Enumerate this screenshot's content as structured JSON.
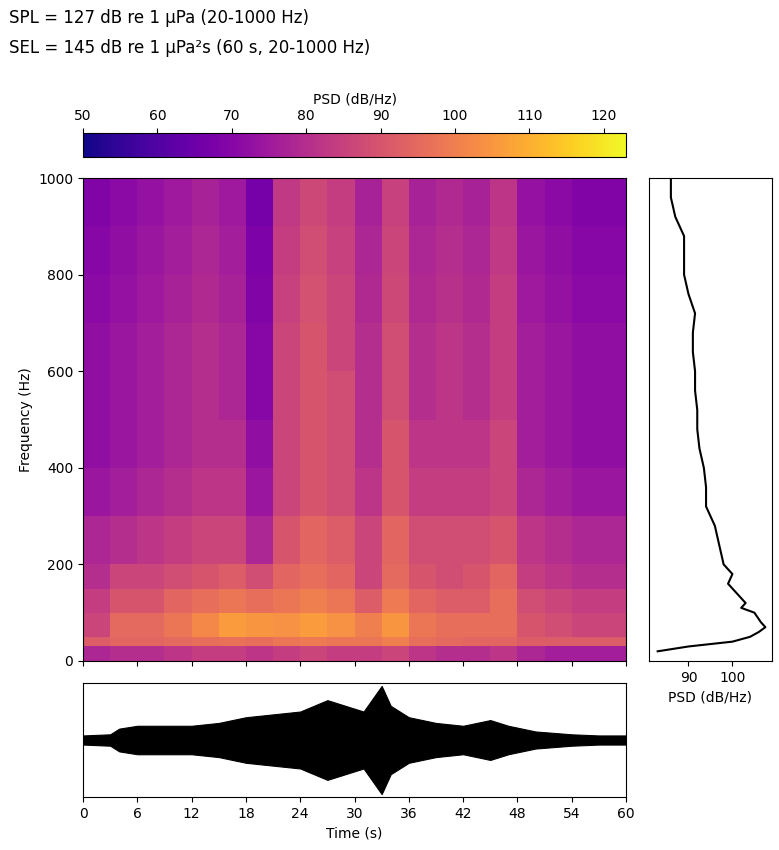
{
  "chart_data": [
    {
      "type": "heatmap",
      "title": "SPL = 127 dB re 1 µPa (20-1000 Hz)",
      "subtitle": "SEL = 145 dB re 1 µPa²s (60 s, 20-1000 Hz)",
      "y_label": "Frequency (Hz)",
      "x_edges": [
        0,
        3,
        6,
        9,
        12,
        15,
        18,
        21,
        24,
        27,
        30,
        33,
        36,
        39,
        42,
        45,
        48,
        51,
        54,
        57,
        60
      ],
      "y_edges": [
        0,
        30,
        50,
        100,
        150,
        200,
        300,
        400,
        500,
        600,
        700,
        800,
        900,
        1000
      ],
      "cells": [
        [
          78,
          80,
          80,
          82,
          84,
          84,
          82,
          84,
          86,
          84,
          84,
          86,
          82,
          80,
          80,
          82,
          78,
          76,
          76,
          76
        ],
        [
          92,
          94,
          94,
          95,
          96,
          97,
          96,
          98,
          99,
          98,
          98,
          100,
          96,
          95,
          94,
          94,
          92,
          92,
          92,
          92
        ],
        [
          86,
          95,
          95,
          98,
          102,
          106,
          105,
          104,
          106,
          104,
          100,
          105,
          98,
          96,
          96,
          96,
          90,
          88,
          86,
          86
        ],
        [
          84,
          90,
          90,
          94,
          96,
          98,
          96,
          98,
          100,
          98,
          92,
          99,
          94,
          92,
          92,
          96,
          88,
          86,
          84,
          84
        ],
        [
          80,
          86,
          86,
          88,
          90,
          92,
          88,
          94,
          96,
          94,
          86,
          95,
          90,
          88,
          90,
          94,
          84,
          82,
          80,
          80
        ],
        [
          78,
          80,
          82,
          84,
          86,
          86,
          78,
          90,
          94,
          92,
          86,
          94,
          88,
          88,
          88,
          90,
          82,
          80,
          78,
          78
        ],
        [
          74,
          76,
          78,
          80,
          82,
          82,
          74,
          86,
          90,
          88,
          82,
          90,
          84,
          84,
          84,
          86,
          78,
          76,
          74,
          74
        ],
        [
          72,
          74,
          76,
          78,
          80,
          80,
          72,
          86,
          90,
          88,
          80,
          90,
          82,
          82,
          82,
          86,
          76,
          74,
          72,
          72
        ],
        [
          72,
          74,
          76,
          78,
          80,
          78,
          70,
          86,
          90,
          88,
          80,
          88,
          80,
          82,
          80,
          84,
          76,
          74,
          72,
          72
        ],
        [
          72,
          74,
          76,
          78,
          80,
          78,
          70,
          86,
          90,
          86,
          80,
          88,
          80,
          82,
          80,
          84,
          76,
          74,
          72,
          72
        ],
        [
          71,
          73,
          75,
          77,
          79,
          77,
          69,
          85,
          89,
          86,
          79,
          87,
          79,
          81,
          79,
          84,
          75,
          73,
          71,
          71
        ],
        [
          70,
          72,
          74,
          76,
          78,
          76,
          68,
          84,
          88,
          85,
          78,
          86,
          78,
          80,
          78,
          83,
          74,
          72,
          70,
          70
        ],
        [
          69,
          71,
          73,
          75,
          77,
          75,
          67,
          83,
          87,
          84,
          77,
          85,
          77,
          79,
          77,
          82,
          73,
          71,
          69,
          69
        ]
      ],
      "xlim": [
        0,
        60
      ],
      "xticks": [
        0,
        6,
        12,
        18,
        24,
        30,
        36,
        42,
        48,
        54,
        60
      ],
      "ylim": [
        0,
        1000
      ],
      "yticks": [
        0,
        200,
        400,
        600,
        800,
        1000
      ],
      "tick_labels": "y",
      "colorbar": {
        "label": "PSD (dB/Hz)",
        "range": [
          50,
          123
        ],
        "ticks": [
          50,
          60,
          70,
          80,
          90,
          100,
          110,
          120
        ]
      }
    },
    {
      "type": "line",
      "x_label": "PSD (dB/Hz)",
      "frequency": [
        20,
        30,
        40,
        50,
        60,
        70,
        80,
        100,
        110,
        120,
        140,
        160,
        180,
        200,
        240,
        280,
        320,
        360,
        400,
        440,
        480,
        520,
        560,
        600,
        640,
        680,
        720,
        760,
        800,
        840,
        880,
        920,
        960,
        1000
      ],
      "psd": [
        83,
        90,
        100,
        104,
        106,
        107.5,
        106.5,
        105,
        102,
        103,
        101,
        99,
        100,
        98,
        97,
        96,
        94,
        94,
        93.5,
        92.5,
        92,
        92,
        91.5,
        91.5,
        91,
        91,
        91.5,
        90,
        89,
        89,
        89,
        87,
        86,
        86
      ],
      "color": "#000000",
      "xlim": [
        81,
        109
      ],
      "xticks": [
        90,
        100
      ],
      "ylim": [
        0,
        1000
      ],
      "tick_labels": "x"
    },
    {
      "type": "waveform",
      "x_label": "Time (s)",
      "x": [
        0,
        3,
        4,
        6,
        9,
        12,
        15,
        18,
        21,
        24,
        27,
        29,
        31,
        33,
        34,
        36,
        39,
        42,
        45,
        47,
        50,
        54,
        57,
        60
      ],
      "envelope": [
        0.08,
        0.1,
        0.2,
        0.25,
        0.25,
        0.25,
        0.3,
        0.4,
        0.45,
        0.5,
        0.7,
        0.6,
        0.5,
        0.95,
        0.6,
        0.4,
        0.3,
        0.25,
        0.35,
        0.25,
        0.15,
        0.1,
        0.08,
        0.08
      ],
      "color": "#000000",
      "xlim": [
        0,
        60
      ],
      "xticks": [
        0,
        6,
        12,
        18,
        24,
        30,
        36,
        42,
        48,
        54,
        60
      ],
      "ylim": [
        -1,
        1
      ],
      "tick_labels": "x"
    }
  ]
}
